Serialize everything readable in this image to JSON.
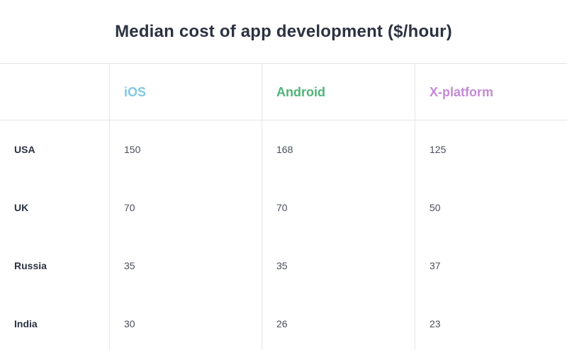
{
  "chart_data": {
    "type": "table",
    "title": "Median cost of app development ($/hour)",
    "columns": [
      {
        "label": "iOS",
        "color": "#7ec8e3"
      },
      {
        "label": "Android",
        "color": "#4fb477"
      },
      {
        "label": "X-platform",
        "color": "#c38ad6"
      }
    ],
    "rows": [
      {
        "label": "USA",
        "values": [
          "150",
          "168",
          "125"
        ]
      },
      {
        "label": "UK",
        "values": [
          "70",
          "70",
          "50"
        ]
      },
      {
        "label": "Russia",
        "values": [
          "35",
          "35",
          "37"
        ]
      },
      {
        "label": "India",
        "values": [
          "30",
          "26",
          "23"
        ]
      }
    ]
  }
}
